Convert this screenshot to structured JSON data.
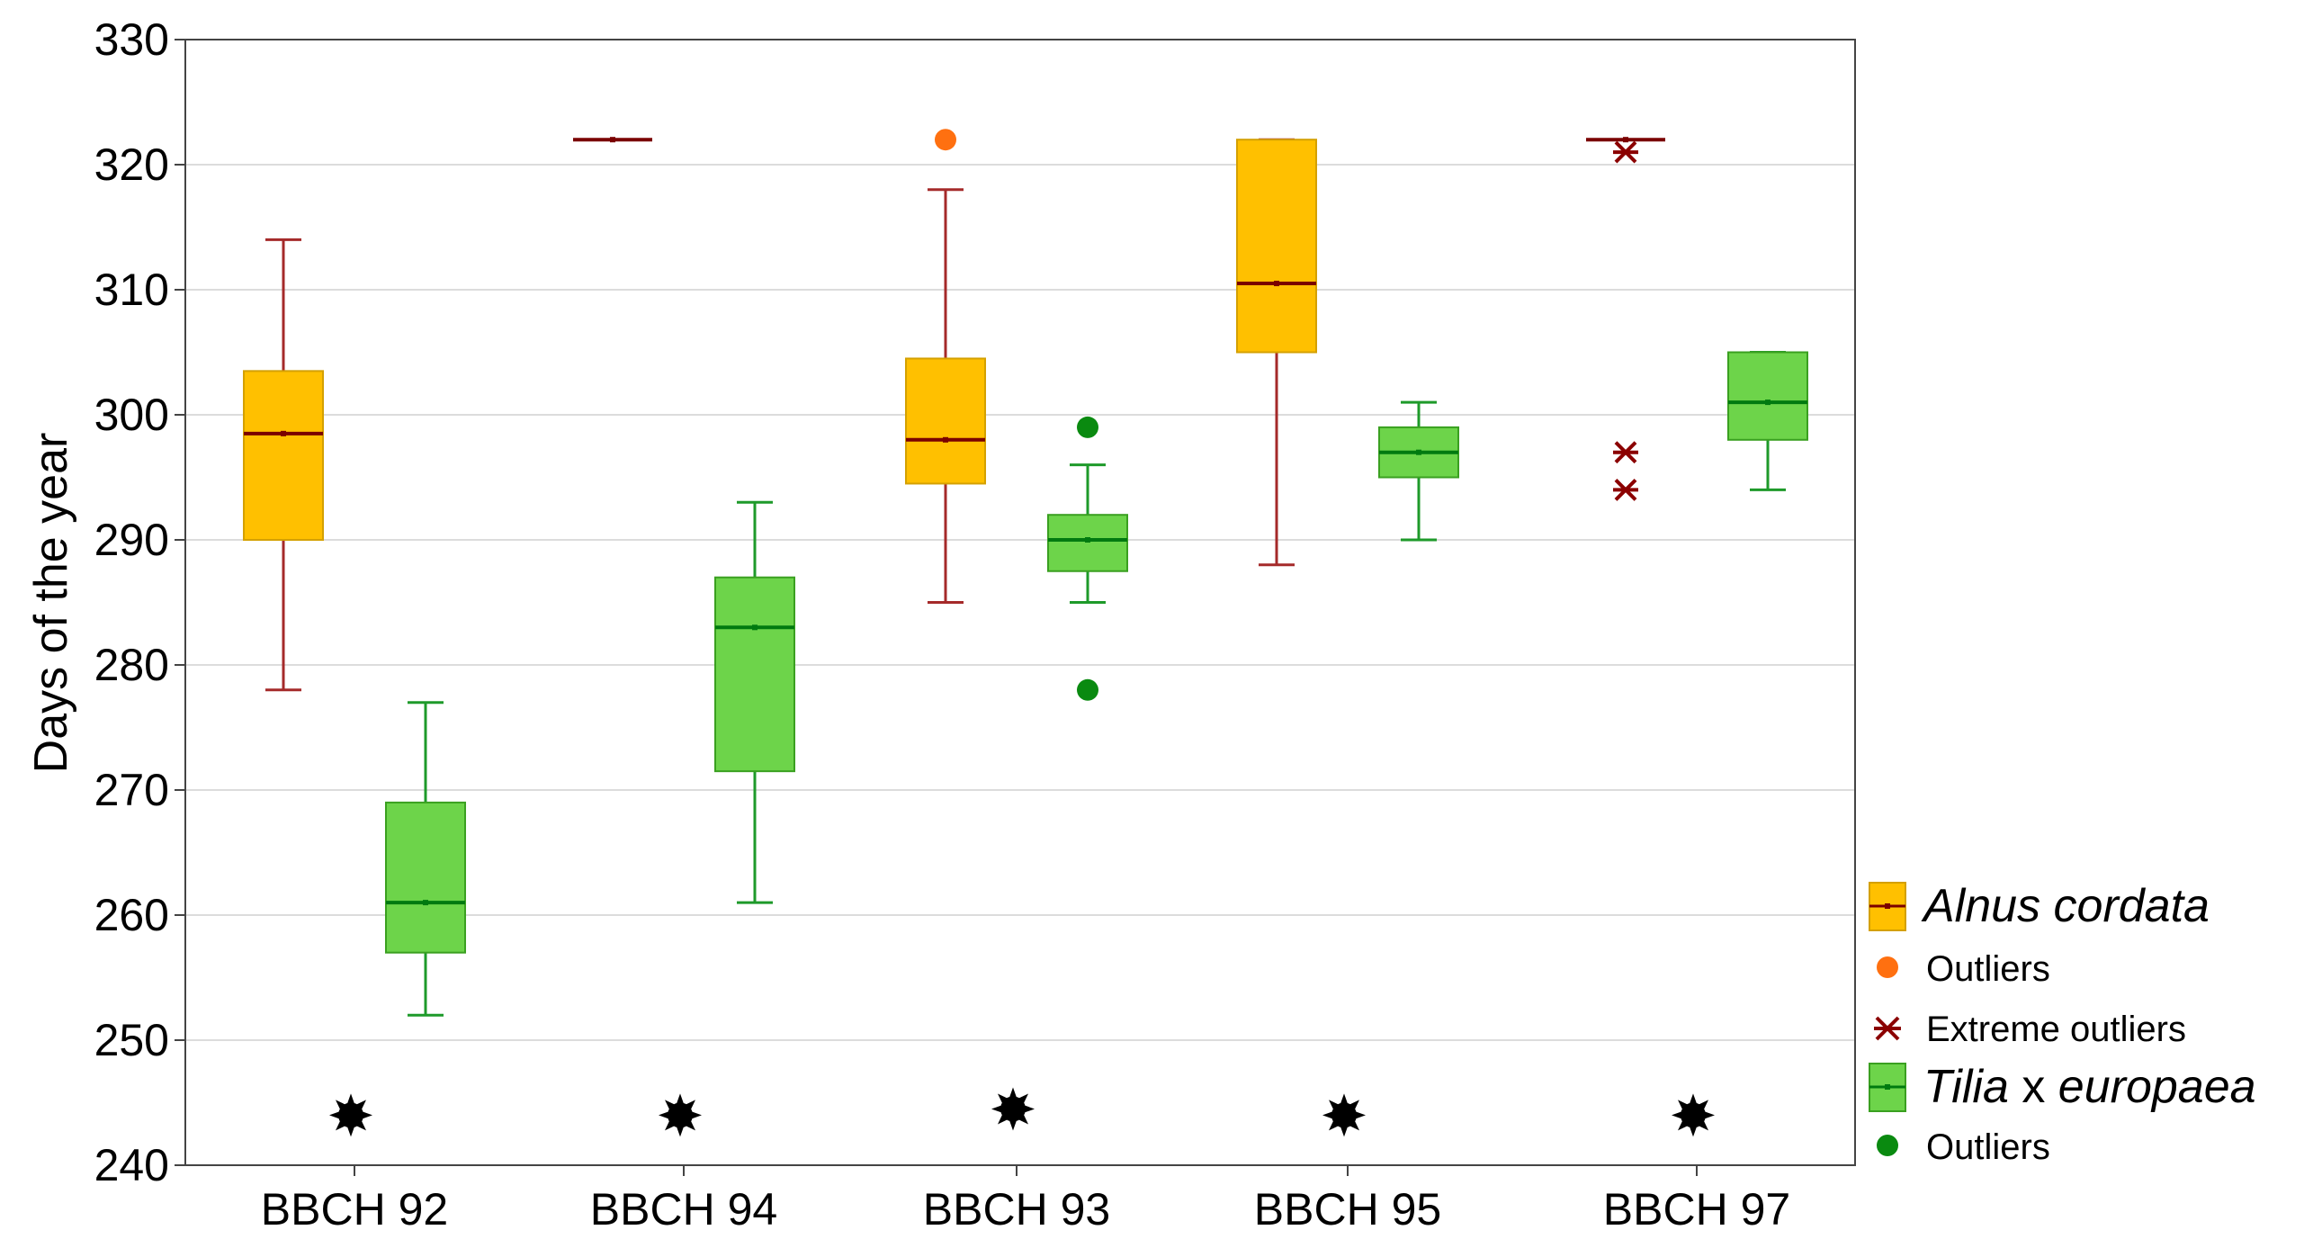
{
  "chart_data": {
    "type": "boxplot",
    "title": "",
    "xlabel": "",
    "ylabel": "Days of the year",
    "ylim": [
      240,
      330
    ],
    "yticks": [
      240,
      250,
      260,
      270,
      280,
      290,
      300,
      310,
      320,
      330
    ],
    "grid": true,
    "legend_position": "right",
    "categories": [
      "BBCH 92",
      "BBCH 94",
      "BBCH 93",
      "BBCH 95",
      "BBCH 97"
    ],
    "colors": {
      "alnus_fill": "#ffc000",
      "alnus_edge": "#d4a000",
      "alnus_line": "#a52a2a",
      "alnus_median": "#7a0000",
      "alnus_outlier": "#ff7010",
      "alnus_extreme": "#8b0000",
      "tilia_fill": "#6dd44a",
      "tilia_edge": "#3aa020",
      "tilia_line": "#1e9a2a",
      "tilia_median": "#007a10",
      "tilia_outlier": "#0a8a10",
      "grid": "#dcdcdc",
      "marker": "#000000"
    },
    "series": [
      {
        "name": "Alnus cordata",
        "boxes": [
          {
            "category": "BBCH 92",
            "whisker_low": 278,
            "q1": 290,
            "median": 298.5,
            "q3": 303.5,
            "whisker_high": 314,
            "outliers": [],
            "extremes": []
          },
          {
            "category": "BBCH 94",
            "whisker_low": 322,
            "q1": 322,
            "median": 322,
            "q3": 322,
            "whisker_high": 322,
            "outliers": [],
            "extremes": []
          },
          {
            "category": "BBCH 93",
            "whisker_low": 285,
            "q1": 294.5,
            "median": 298,
            "q3": 304.5,
            "whisker_high": 318,
            "outliers": [
              322
            ],
            "extremes": []
          },
          {
            "category": "BBCH 95",
            "whisker_low": 288,
            "q1": 305,
            "median": 310.5,
            "q3": 322,
            "whisker_high": 322,
            "outliers": [],
            "extremes": []
          },
          {
            "category": "BBCH 97",
            "whisker_low": 322,
            "q1": 322,
            "median": 322,
            "q3": 322,
            "whisker_high": 322,
            "outliers": [],
            "extremes": [
              321,
              297,
              294
            ]
          }
        ]
      },
      {
        "name": "Tilia x europaea",
        "boxes": [
          {
            "category": "BBCH 92",
            "whisker_low": 252,
            "q1": 257,
            "median": 261,
            "q3": 269,
            "whisker_high": 277,
            "outliers": [],
            "extremes": []
          },
          {
            "category": "BBCH 94",
            "whisker_low": 261,
            "q1": 271.5,
            "median": 283,
            "q3": 287,
            "whisker_high": 293,
            "outliers": [],
            "extremes": []
          },
          {
            "category": "BBCH 93",
            "whisker_low": 285,
            "q1": 287.5,
            "median": 290,
            "q3": 292,
            "whisker_high": 296,
            "outliers": [
              299,
              278
            ],
            "extremes": []
          },
          {
            "category": "BBCH 95",
            "whisker_low": 290,
            "q1": 295,
            "median": 297,
            "q3": 299,
            "whisker_high": 301,
            "outliers": [],
            "extremes": []
          },
          {
            "category": "BBCH 97",
            "whisker_low": 294,
            "q1": 298,
            "median": 301,
            "q3": 305,
            "whisker_high": 305,
            "outliers": [],
            "extremes": []
          }
        ]
      }
    ],
    "significance_markers": [
      {
        "category": "BBCH 92",
        "y": 244
      },
      {
        "category": "BBCH 94",
        "y": 244
      },
      {
        "category": "BBCH 93",
        "y": 244.5
      },
      {
        "category": "BBCH 95",
        "y": 244
      },
      {
        "category": "BBCH 97",
        "y": 244
      }
    ],
    "legend": {
      "alnus_label": "Alnus cordata",
      "alnus_outliers_label": "Outliers",
      "alnus_extremes_label": "Extreme outliers",
      "tilia_label_italic_1": "Tilia",
      "tilia_label_x": "x",
      "tilia_label_italic_2": "europaea",
      "tilia_outliers_label": "Outliers"
    }
  }
}
